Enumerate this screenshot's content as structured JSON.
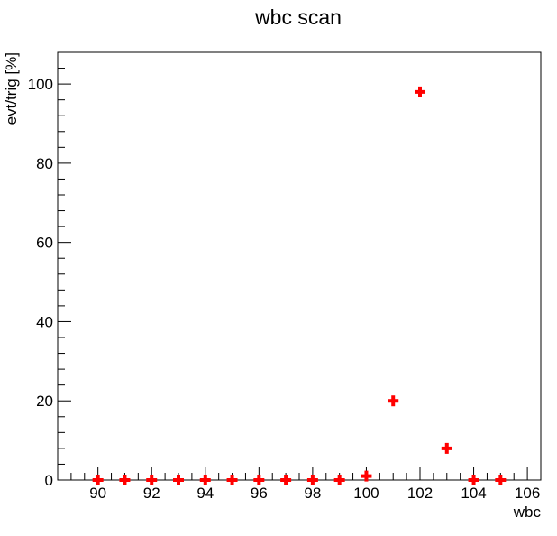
{
  "chart_data": {
    "type": "scatter",
    "title": "wbc scan",
    "xlabel": "wbc",
    "ylabel": "evt/trig [%]",
    "xlim": [
      88.5,
      106.5
    ],
    "ylim": [
      0,
      108
    ],
    "x_ticks": [
      90,
      92,
      94,
      96,
      98,
      100,
      102,
      104,
      106
    ],
    "y_ticks": [
      0,
      20,
      40,
      60,
      80,
      100
    ],
    "grid": false,
    "legend": "none",
    "marker": "plus",
    "marker_color": "#ff0000",
    "series": [
      {
        "x": [
          90,
          91,
          92,
          93,
          94,
          95,
          96,
          97,
          98,
          99,
          100,
          101,
          102,
          103,
          104,
          105
        ],
        "y": [
          0,
          0,
          0,
          0,
          0,
          0,
          0,
          0,
          0,
          0,
          1,
          20,
          98,
          8,
          0,
          0
        ]
      }
    ]
  }
}
